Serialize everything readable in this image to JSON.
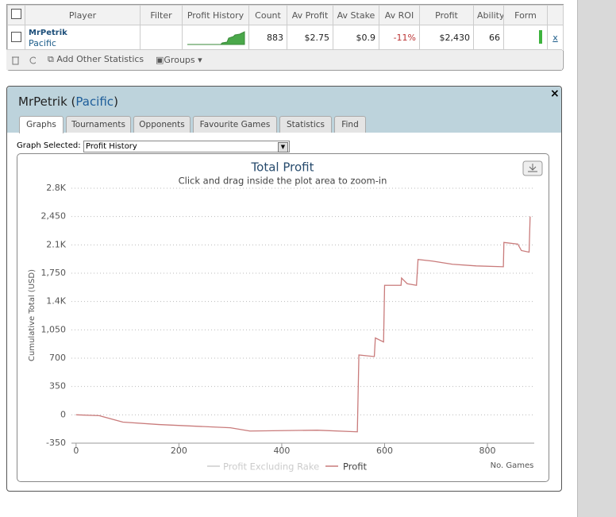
{
  "table": {
    "header": [
      "Player",
      "Filter",
      "Profit History",
      "Count",
      "Av Profit",
      "Av Stake",
      "Av ROI",
      "Profit",
      "Ability",
      "Form"
    ],
    "row": {
      "player": "MrPetrik",
      "site": "Pacific",
      "count": "883",
      "av_profit": "$2.75",
      "av_stake": "$0.9",
      "av_roi": "-11%",
      "profit": "$2,430",
      "ability": "66",
      "remove": "x"
    }
  },
  "toolbar": {
    "add_stats": "Add Other Statistics",
    "groups": "Groups"
  },
  "panel": {
    "title_parts": [
      "MrPetrik (",
      "Pacific",
      ")"
    ],
    "close": "×",
    "tabs": [
      "Graphs",
      "Tournaments",
      "Opponents",
      "Favourite Games",
      "Statistics",
      "Find"
    ],
    "graph_label": "Graph Selected:",
    "graph_selected": "Profit History"
  },
  "chart_data": {
    "type": "line",
    "title": "Total Profit",
    "subtitle": "Click and drag inside the plot area to zoom-in",
    "y_label": "Cumulative Total (USD)",
    "x_label": "No. Games",
    "x": [
      0,
      45,
      91,
      161,
      300,
      338,
      469,
      547,
      550,
      580,
      582,
      598,
      600,
      632,
      633,
      644,
      662,
      665,
      693,
      732,
      778,
      831,
      832,
      859,
      866,
      881,
      883
    ],
    "series": [
      {
        "name": "Profit",
        "color": "#c97b7b",
        "values": [
          0,
          -10,
          -90,
          -120,
          -160,
          -200,
          -190,
          -210,
          740,
          720,
          950,
          900,
          1600,
          1600,
          1690,
          1620,
          1600,
          1920,
          1900,
          1860,
          1840,
          1830,
          2130,
          2110,
          2030,
          2010,
          2450
        ]
      }
    ],
    "hidden_series": {
      "name": "Profit Excluding Rake",
      "color": "#cccccc"
    },
    "xlim": [
      -9,
      891
    ],
    "xticks": [
      0,
      200,
      400,
      600,
      800
    ],
    "ylim": [
      -350,
      2800
    ],
    "yticks": [
      -350,
      0,
      350,
      700,
      {
        "value": 1050,
        "label": "1,050"
      },
      {
        "value": 1400,
        "label": "1.4K"
      },
      {
        "value": 1750,
        "label": "1,750"
      },
      {
        "value": 2100,
        "label": "2.1K"
      },
      {
        "value": 2450,
        "label": "2,450"
      },
      {
        "value": 2800,
        "label": "2.8K"
      }
    ],
    "grid": true
  }
}
